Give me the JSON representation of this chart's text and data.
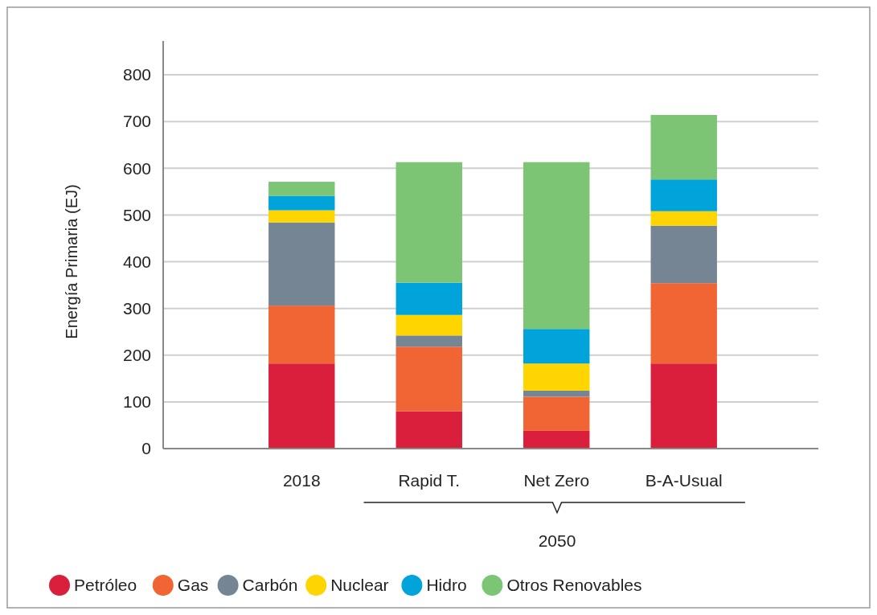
{
  "chart_data": {
    "type": "bar",
    "stacked": true,
    "ylabel": "Energía Primaria (EJ)",
    "categories": [
      "2018",
      "Rapid T.",
      "Net Zero",
      "B-A-Usual"
    ],
    "series": [
      {
        "name": "Petróleo",
        "color": "#da1f3d",
        "values": [
          182,
          80,
          38,
          182
        ]
      },
      {
        "name": "Gas",
        "color": "#f06533",
        "values": [
          124,
          138,
          73,
          172
        ]
      },
      {
        "name": "Carbón",
        "color": "#768593",
        "values": [
          178,
          24,
          13,
          123
        ]
      },
      {
        "name": "Nuclear",
        "color": "#ffd500",
        "values": [
          26,
          44,
          58,
          31
        ]
      },
      {
        "name": "Hidro",
        "color": "#00a3da",
        "values": [
          31,
          69,
          74,
          68
        ]
      },
      {
        "name": "Otros Renovables",
        "color": "#7cc574",
        "values": [
          30,
          258,
          357,
          138
        ]
      }
    ],
    "ylim": [
      0,
      800
    ],
    "yticks": [
      0,
      100,
      200,
      300,
      400,
      500,
      600,
      700,
      800
    ],
    "grid": "y",
    "legend": "bottom",
    "annotations": [
      "2050"
    ]
  }
}
